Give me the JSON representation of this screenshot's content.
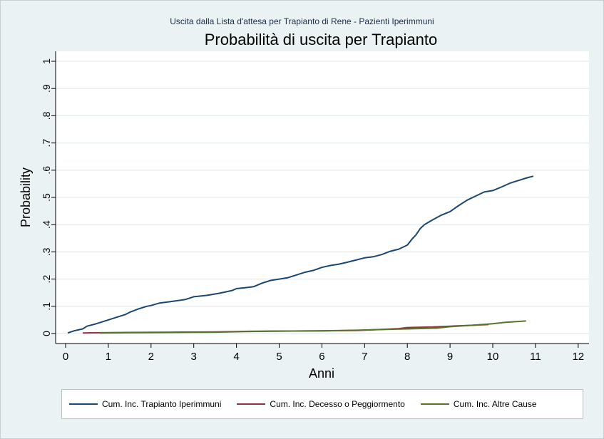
{
  "chart_data": {
    "type": "line",
    "subtitle": "Uscita dalla Lista d'attesa per Trapianto di Rene - Pazienti Iperimmuni",
    "title": "Probabilità di uscita per Trapianto",
    "xlabel": "Anni",
    "ylabel": "Probability",
    "xlim": [
      0,
      12
    ],
    "ylim": [
      0,
      1
    ],
    "xticks": [
      "0",
      "1",
      "2",
      "3",
      "4",
      "5",
      "6",
      "7",
      "8",
      "9",
      "10",
      "11",
      "12"
    ],
    "yticks": [
      "0",
      ".1",
      ".2",
      ".3",
      ".4",
      ".5",
      ".6",
      ".7",
      ".8",
      ".9",
      "1"
    ],
    "grid": "horizontal",
    "legend_position": "bottom",
    "series": [
      {
        "name": "Cum. Inc. Trapianto Iperimmuni",
        "color": "#1a476f",
        "x": [
          0.05,
          0.2,
          0.4,
          0.5,
          0.7,
          0.9,
          1.0,
          1.2,
          1.4,
          1.5,
          1.7,
          1.9,
          2.0,
          2.2,
          2.5,
          2.8,
          3.0,
          3.3,
          3.6,
          3.9,
          4.0,
          4.2,
          4.4,
          4.6,
          4.8,
          5.0,
          5.2,
          5.4,
          5.6,
          5.8,
          6.0,
          6.2,
          6.4,
          6.6,
          6.8,
          7.0,
          7.2,
          7.4,
          7.6,
          7.8,
          8.0,
          8.1,
          8.2,
          8.3,
          8.4,
          8.6,
          8.8,
          9.0,
          9.2,
          9.4,
          9.6,
          9.8,
          10.0,
          10.2,
          10.4,
          10.6,
          10.8,
          10.95
        ],
        "values": [
          0.002,
          0.01,
          0.017,
          0.027,
          0.035,
          0.045,
          0.05,
          0.06,
          0.07,
          0.078,
          0.09,
          0.1,
          0.103,
          0.112,
          0.118,
          0.125,
          0.135,
          0.14,
          0.148,
          0.158,
          0.165,
          0.168,
          0.172,
          0.185,
          0.195,
          0.2,
          0.205,
          0.215,
          0.225,
          0.232,
          0.243,
          0.25,
          0.255,
          0.262,
          0.27,
          0.278,
          0.282,
          0.29,
          0.302,
          0.31,
          0.325,
          0.345,
          0.362,
          0.385,
          0.4,
          0.418,
          0.435,
          0.448,
          0.47,
          0.49,
          0.505,
          0.52,
          0.525,
          0.538,
          0.552,
          0.562,
          0.572,
          0.578
        ]
      },
      {
        "name": "Cum. Inc. Decesso o Peggiormento",
        "color": "#90353b",
        "x": [
          0.4,
          0.8,
          1.5,
          2.5,
          3.5,
          4.3,
          5.0,
          6.0,
          6.8,
          7.2,
          7.8,
          8.0,
          8.6,
          9.0,
          9.5,
          9.9
        ],
        "values": [
          0.002,
          0.003,
          0.004,
          0.005,
          0.006,
          0.008,
          0.009,
          0.01,
          0.011,
          0.014,
          0.018,
          0.022,
          0.024,
          0.027,
          0.03,
          0.033
        ]
      },
      {
        "name": "Cum. Inc. Altre Cause",
        "color": "#55752f",
        "x": [
          0.8,
          1.5,
          2.5,
          3.5,
          4.2,
          5.0,
          6.0,
          6.8,
          7.5,
          8.0,
          8.7,
          9.0,
          9.5,
          10.0,
          10.3,
          10.78
        ],
        "values": [
          0.002,
          0.003,
          0.004,
          0.005,
          0.007,
          0.009,
          0.01,
          0.012,
          0.015,
          0.017,
          0.02,
          0.025,
          0.03,
          0.036,
          0.041,
          0.046
        ]
      }
    ]
  }
}
